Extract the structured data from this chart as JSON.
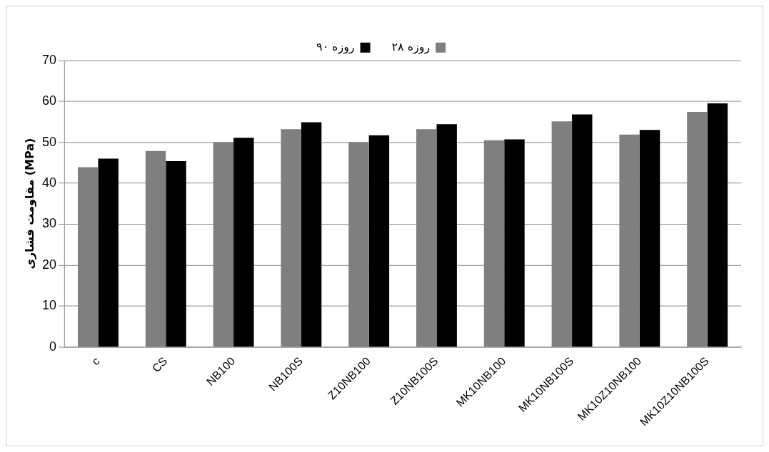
{
  "chart_data": {
    "type": "bar",
    "ylabel": "مقاومت فشاری (MPa)",
    "categories": [
      "c",
      "CS",
      "NB100",
      "NB100S",
      "Z10NB100",
      "Z10NB100S",
      "MK10NB100",
      "MK10NB100S",
      "MK10Z10NB100",
      "MK10Z10NB100S"
    ],
    "series": [
      {
        "name": "۲۸ روزه",
        "color": "#7f7f7f",
        "values": [
          43.9,
          47.9,
          50,
          53.2,
          50,
          53.2,
          50.5,
          55.1,
          51.9,
          57.4
        ]
      },
      {
        "name": "۹۰ روزه",
        "color": "#000000",
        "values": [
          46,
          45.4,
          51.1,
          54.9,
          51.7,
          54.4,
          50.7,
          56.8,
          53,
          59.5
        ]
      }
    ],
    "ylim": [
      0,
      70
    ],
    "yticks": [
      0,
      10,
      20,
      30,
      40,
      50,
      60,
      70
    ],
    "grid": "y",
    "legend": "top"
  }
}
